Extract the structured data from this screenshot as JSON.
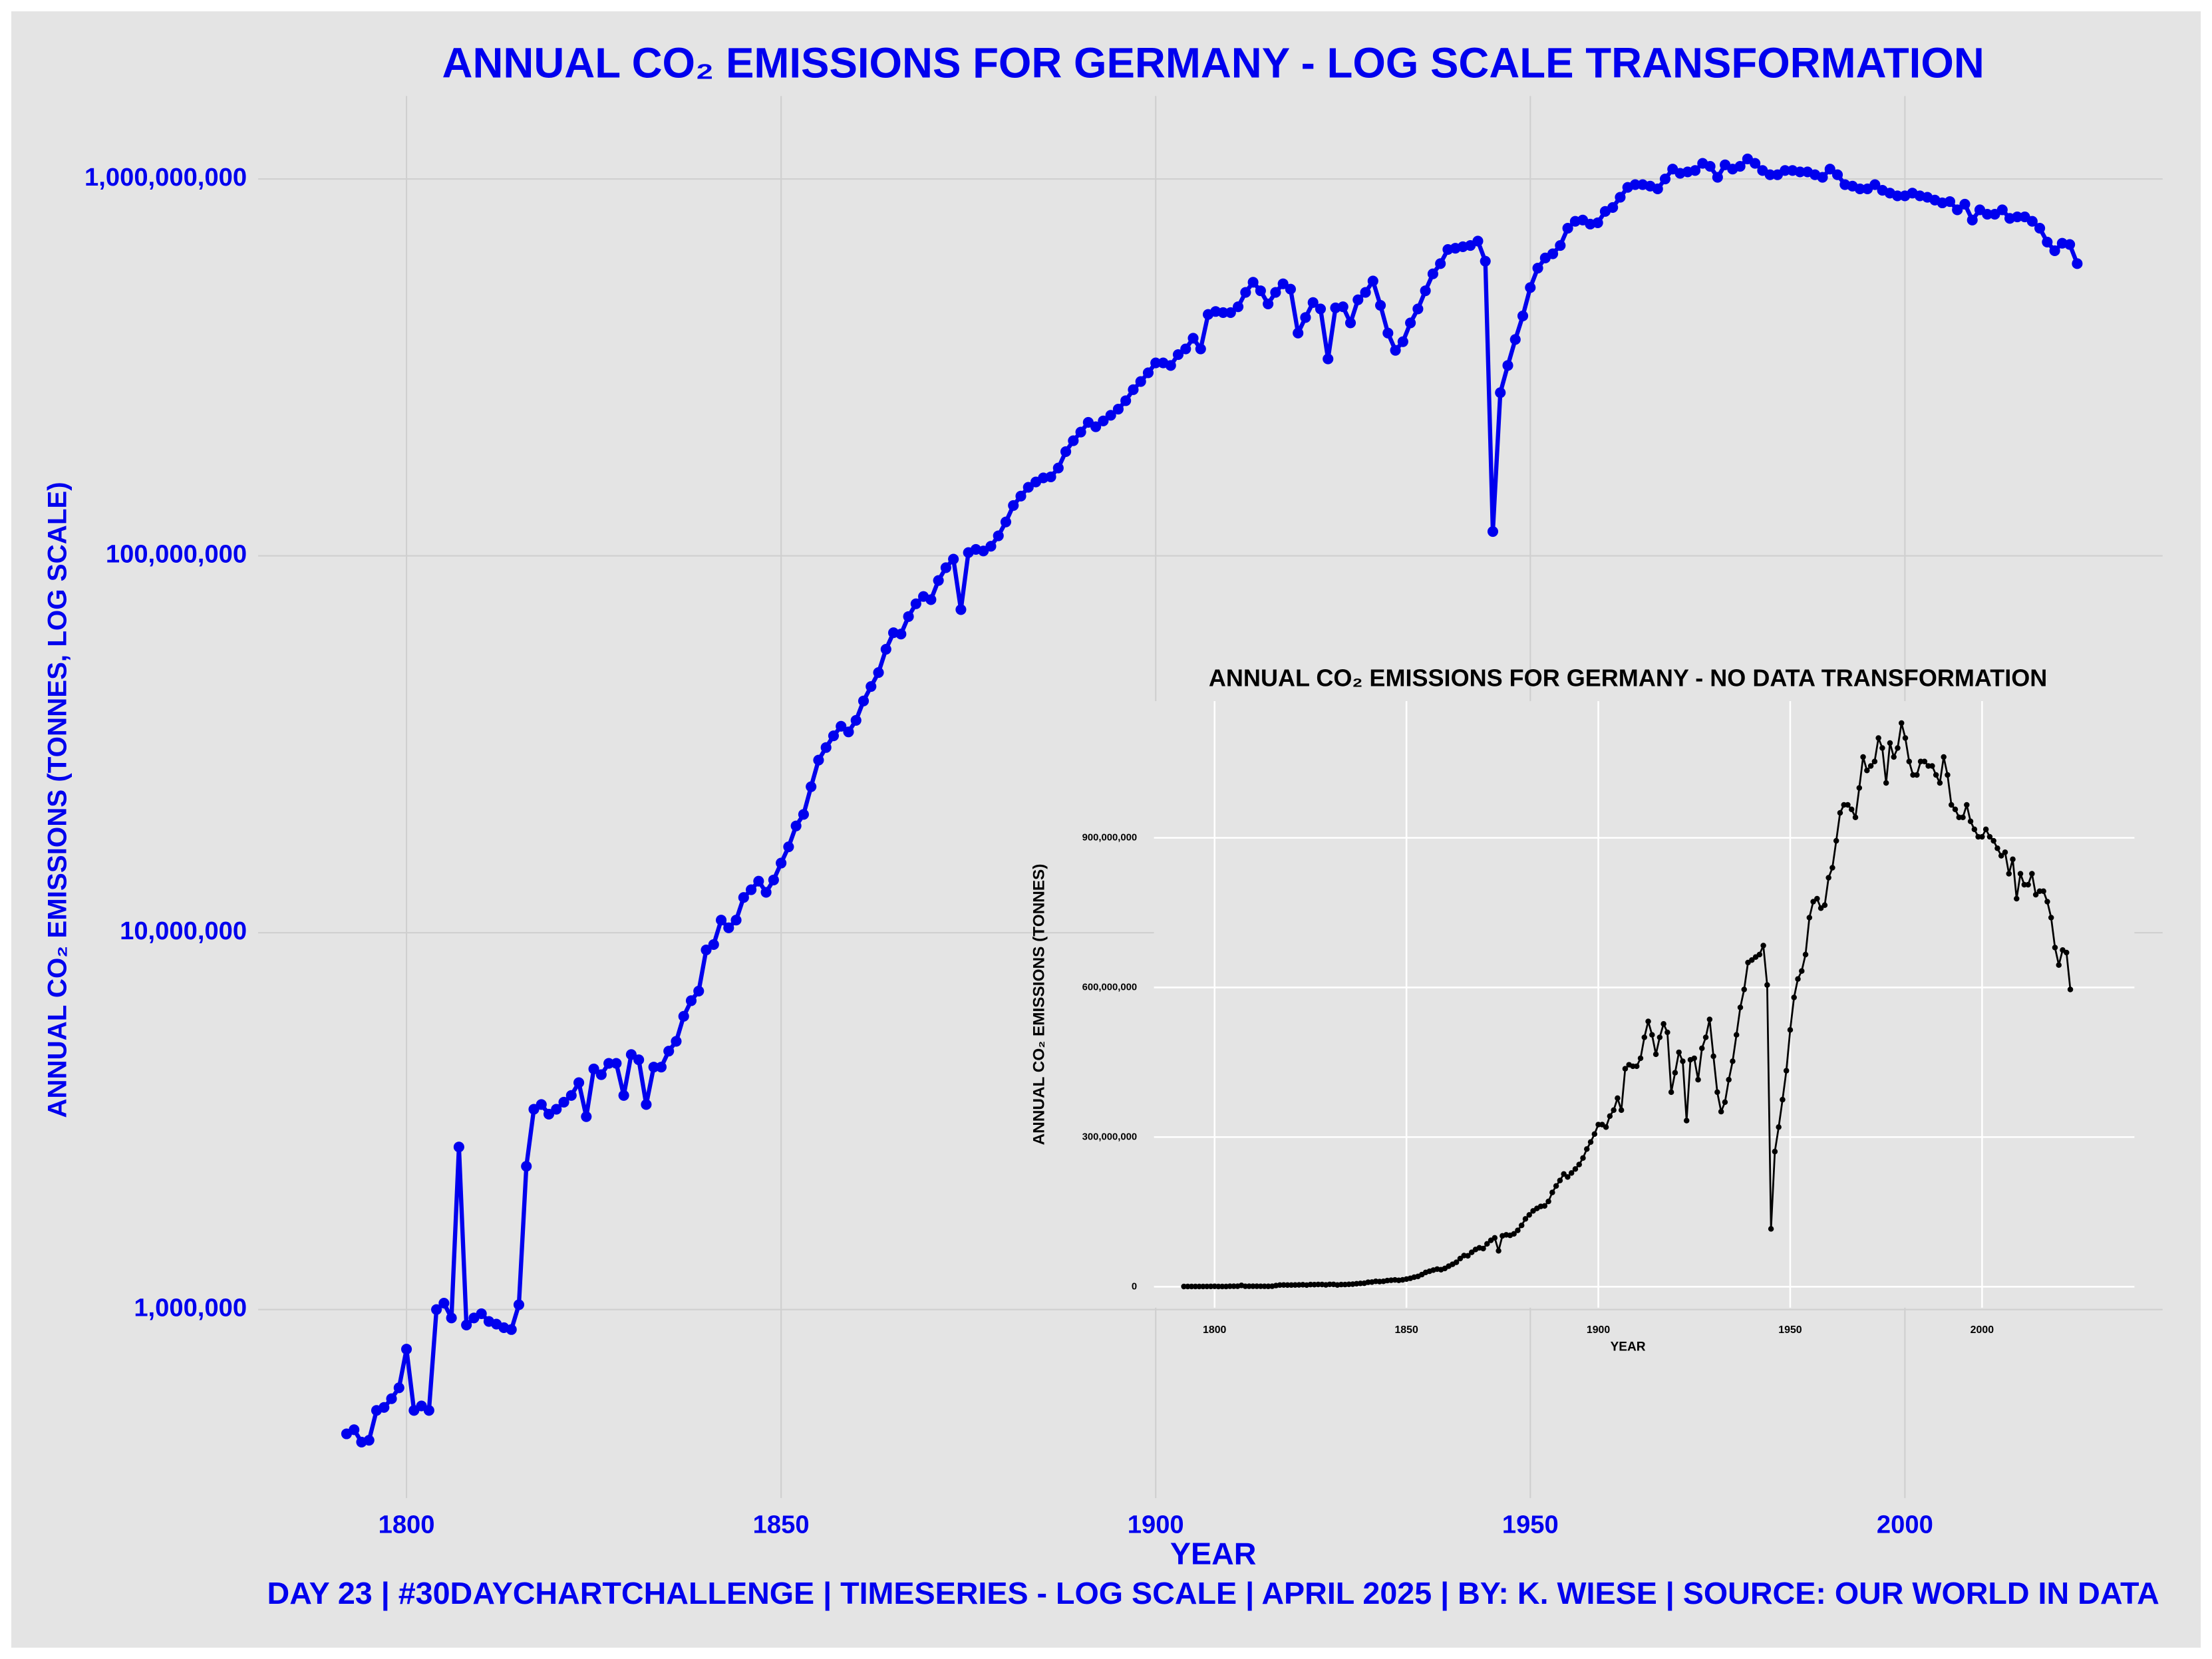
{
  "chart_data": [
    {
      "type": "line",
      "title": "ANNUAL CO₂ EMISSIONS FOR GERMANY - LOG SCALE TRANSFORMATION",
      "x_label": "YEAR",
      "y_label": "ANNUAL CO₂ EMISSIONS (TONNES, LOG SCALE)",
      "caption": "DAY 23 | #30DAYCHARTCHALLENGE | TIMESERIES - LOG SCALE | APRIL 2025 | BY: K. WIESE | SOURCE: OUR WORLD IN DATA",
      "log_scale": true,
      "grid": true,
      "x": [
        1792,
        1793,
        1794,
        1795,
        1796,
        1797,
        1798,
        1799,
        1800,
        1801,
        1802,
        1803,
        1804,
        1805,
        1806,
        1807,
        1808,
        1809,
        1810,
        1811,
        1812,
        1813,
        1814,
        1815,
        1816,
        1817,
        1818,
        1819,
        1820,
        1821,
        1822,
        1823,
        1824,
        1825,
        1826,
        1827,
        1828,
        1829,
        1830,
        1831,
        1832,
        1833,
        1834,
        1835,
        1836,
        1837,
        1838,
        1839,
        1840,
        1841,
        1842,
        1843,
        1844,
        1845,
        1846,
        1847,
        1848,
        1849,
        1850,
        1851,
        1852,
        1853,
        1854,
        1855,
        1856,
        1857,
        1858,
        1859,
        1860,
        1861,
        1862,
        1863,
        1864,
        1865,
        1866,
        1867,
        1868,
        1869,
        1870,
        1871,
        1872,
        1873,
        1874,
        1875,
        1876,
        1877,
        1878,
        1879,
        1880,
        1881,
        1882,
        1883,
        1884,
        1885,
        1886,
        1887,
        1888,
        1889,
        1890,
        1891,
        1892,
        1893,
        1894,
        1895,
        1896,
        1897,
        1898,
        1899,
        1900,
        1901,
        1902,
        1903,
        1904,
        1905,
        1906,
        1907,
        1908,
        1909,
        1910,
        1911,
        1912,
        1913,
        1914,
        1915,
        1916,
        1917,
        1918,
        1919,
        1920,
        1921,
        1922,
        1923,
        1924,
        1925,
        1926,
        1927,
        1928,
        1929,
        1930,
        1931,
        1932,
        1933,
        1934,
        1935,
        1936,
        1937,
        1938,
        1939,
        1940,
        1941,
        1942,
        1943,
        1944,
        1945,
        1946,
        1947,
        1948,
        1949,
        1950,
        1951,
        1952,
        1953,
        1954,
        1955,
        1956,
        1957,
        1958,
        1959,
        1960,
        1961,
        1962,
        1963,
        1964,
        1965,
        1966,
        1967,
        1968,
        1969,
        1970,
        1971,
        1972,
        1973,
        1974,
        1975,
        1976,
        1977,
        1978,
        1979,
        1980,
        1981,
        1982,
        1983,
        1984,
        1985,
        1986,
        1987,
        1988,
        1989,
        1990,
        1991,
        1992,
        1993,
        1994,
        1995,
        1996,
        1997,
        1998,
        1999,
        2000,
        2001,
        2002,
        2003,
        2004,
        2005,
        2006,
        2007,
        2008,
        2009,
        2010,
        2011,
        2012,
        2013,
        2014,
        2015,
        2016,
        2017,
        2018,
        2019,
        2020,
        2021,
        2022,
        2023
      ],
      "series": [
        {
          "color": "#0000ee",
          "values": [
            468000,
            480000,
            445000,
            450000,
            540000,
            550000,
            580000,
            620000,
            785000,
            540000,
            555000,
            540000,
            1000000,
            1040000,
            950000,
            2700000,
            910000,
            950000,
            975000,
            930000,
            915000,
            895000,
            885000,
            1030000,
            2400000,
            3400000,
            3500000,
            3300000,
            3400000,
            3550000,
            3700000,
            4000000,
            3250000,
            4350000,
            4200000,
            4500000,
            4500000,
            3700000,
            4750000,
            4600000,
            3500000,
            4400000,
            4400000,
            4850000,
            5150000,
            6000000,
            6600000,
            7000000,
            9000000,
            9300000,
            10800000,
            10300000,
            10800000,
            12400000,
            13000000,
            13700000,
            12800000,
            13800000,
            15300000,
            16900000,
            19200000,
            20600000,
            24400000,
            28700000,
            31000000,
            33300000,
            35300000,
            34100000,
            36600000,
            41200000,
            45000000,
            49000000,
            56500000,
            62500000,
            62000000,
            69000000,
            74600000,
            78000000,
            76500000,
            86000000,
            93000000,
            98000000,
            72000000,
            102000000,
            104000000,
            103000000,
            106000000,
            113000000,
            123000000,
            136000000,
            144000000,
            152000000,
            157000000,
            161000000,
            162000000,
            171000000,
            189000000,
            202000000,
            213000000,
            226000000,
            220000000,
            228000000,
            236000000,
            245000000,
            258000000,
            276000000,
            290000000,
            306000000,
            325000000,
            325000000,
            320000000,
            342000000,
            354000000,
            378000000,
            354000000,
            437000000,
            445000000,
            442000000,
            442000000,
            458000000,
            500000000,
            532000000,
            505000000,
            466000000,
            500000000,
            527000000,
            510000000,
            390000000,
            429000000,
            470000000,
            452000000,
            333000000,
            455000000,
            458000000,
            415000000,
            478000000,
            500000000,
            536000000,
            462000000,
            390000000,
            351000000,
            370000000,
            415000000,
            452000000,
            505000000,
            560000000,
            596000000,
            650000000,
            655000000,
            661000000,
            666000000,
            684000000,
            605000000,
            116000000,
            271000000,
            320000000,
            375000000,
            433000000,
            515000000,
            580000000,
            617000000,
            633000000,
            666000000,
            740000000,
            772000000,
            778000000,
            759000000,
            765000000,
            820000000,
            840000000,
            894000000,
            950000000,
            966000000,
            966000000,
            957000000,
            941000000,
            1000000000,
            1062000000,
            1035000000,
            1044000000,
            1053000000,
            1100000000,
            1080000000,
            1010000000,
            1090000000,
            1062000000,
            1080000000,
            1130000000,
            1100000000,
            1053000000,
            1026000000,
            1026000000,
            1053000000,
            1053000000,
            1044000000,
            1044000000,
            1026000000,
            1010000000,
            1062000000,
            1026000000,
            966000000,
            957000000,
            941000000,
            941000000,
            966000000,
            933000000,
            917000000,
            902000000,
            902000000,
            917000000,
            902000000,
            894000000,
            879000000,
            864000000,
            871000000,
            828000000,
            857000000,
            778000000,
            828000000,
            806000000,
            806000000,
            828000000,
            786000000,
            793000000,
            793000000,
            772000000,
            740000000,
            680000000,
            645000000,
            675000000,
            670000000,
            596000000
          ]
        }
      ],
      "xlim": [
        1780.2,
        2034.4
      ],
      "ylim": [
        316000,
        1660000000
      ],
      "xticks": [
        1800,
        1850,
        1900,
        1950,
        2000
      ],
      "yticks": [
        {
          "value": 1000000,
          "label": "1,000,000"
        },
        {
          "value": 10000000,
          "label": "10,000,000"
        },
        {
          "value": 100000000,
          "label": "100,000,000"
        },
        {
          "value": 1000000000,
          "label": "1,000,000,000"
        }
      ]
    },
    {
      "type": "line",
      "title": "ANNUAL CO₂ EMISSIONS FOR GERMANY - NO DATA TRANSFORMATION",
      "x_label": "YEAR",
      "y_label": "ANNUAL CO₂ EMISSIONS (TONNES)",
      "log_scale": false,
      "grid": true,
      "x": [
        1792,
        1793,
        1794,
        1795,
        1796,
        1797,
        1798,
        1799,
        1800,
        1801,
        1802,
        1803,
        1804,
        1805,
        1806,
        1807,
        1808,
        1809,
        1810,
        1811,
        1812,
        1813,
        1814,
        1815,
        1816,
        1817,
        1818,
        1819,
        1820,
        1821,
        1822,
        1823,
        1824,
        1825,
        1826,
        1827,
        1828,
        1829,
        1830,
        1831,
        1832,
        1833,
        1834,
        1835,
        1836,
        1837,
        1838,
        1839,
        1840,
        1841,
        1842,
        1843,
        1844,
        1845,
        1846,
        1847,
        1848,
        1849,
        1850,
        1851,
        1852,
        1853,
        1854,
        1855,
        1856,
        1857,
        1858,
        1859,
        1860,
        1861,
        1862,
        1863,
        1864,
        1865,
        1866,
        1867,
        1868,
        1869,
        1870,
        1871,
        1872,
        1873,
        1874,
        1875,
        1876,
        1877,
        1878,
        1879,
        1880,
        1881,
        1882,
        1883,
        1884,
        1885,
        1886,
        1887,
        1888,
        1889,
        1890,
        1891,
        1892,
        1893,
        1894,
        1895,
        1896,
        1897,
        1898,
        1899,
        1900,
        1901,
        1902,
        1903,
        1904,
        1905,
        1906,
        1907,
        1908,
        1909,
        1910,
        1911,
        1912,
        1913,
        1914,
        1915,
        1916,
        1917,
        1918,
        1919,
        1920,
        1921,
        1922,
        1923,
        1924,
        1925,
        1926,
        1927,
        1928,
        1929,
        1930,
        1931,
        1932,
        1933,
        1934,
        1935,
        1936,
        1937,
        1938,
        1939,
        1940,
        1941,
        1942,
        1943,
        1944,
        1945,
        1946,
        1947,
        1948,
        1949,
        1950,
        1951,
        1952,
        1953,
        1954,
        1955,
        1956,
        1957,
        1958,
        1959,
        1960,
        1961,
        1962,
        1963,
        1964,
        1965,
        1966,
        1967,
        1968,
        1969,
        1970,
        1971,
        1972,
        1973,
        1974,
        1975,
        1976,
        1977,
        1978,
        1979,
        1980,
        1981,
        1982,
        1983,
        1984,
        1985,
        1986,
        1987,
        1988,
        1989,
        1990,
        1991,
        1992,
        1993,
        1994,
        1995,
        1996,
        1997,
        1998,
        1999,
        2000,
        2001,
        2002,
        2003,
        2004,
        2005,
        2006,
        2007,
        2008,
        2009,
        2010,
        2011,
        2012,
        2013,
        2014,
        2015,
        2016,
        2017,
        2018,
        2019,
        2020,
        2021,
        2022,
        2023
      ],
      "series": [
        {
          "color": "#000000",
          "values": [
            468000,
            480000,
            445000,
            450000,
            540000,
            550000,
            580000,
            620000,
            785000,
            540000,
            555000,
            540000,
            1000000,
            1040000,
            950000,
            2700000,
            910000,
            950000,
            975000,
            930000,
            915000,
            895000,
            885000,
            1030000,
            2400000,
            3400000,
            3500000,
            3300000,
            3400000,
            3550000,
            3700000,
            4000000,
            3250000,
            4350000,
            4200000,
            4500000,
            4500000,
            3700000,
            4750000,
            4600000,
            3500000,
            4400000,
            4400000,
            4850000,
            5150000,
            6000000,
            6600000,
            7000000,
            9000000,
            9300000,
            10800000,
            10300000,
            10800000,
            12400000,
            13000000,
            13700000,
            12800000,
            13800000,
            15300000,
            16900000,
            19200000,
            20600000,
            24400000,
            28700000,
            31000000,
            33300000,
            35300000,
            34100000,
            36600000,
            41200000,
            45000000,
            49000000,
            56500000,
            62500000,
            62000000,
            69000000,
            74600000,
            78000000,
            76500000,
            86000000,
            93000000,
            98000000,
            72000000,
            102000000,
            104000000,
            103000000,
            106000000,
            113000000,
            123000000,
            136000000,
            144000000,
            152000000,
            157000000,
            161000000,
            162000000,
            171000000,
            189000000,
            202000000,
            213000000,
            226000000,
            220000000,
            228000000,
            236000000,
            245000000,
            258000000,
            276000000,
            290000000,
            306000000,
            325000000,
            325000000,
            320000000,
            342000000,
            354000000,
            378000000,
            354000000,
            437000000,
            445000000,
            442000000,
            442000000,
            458000000,
            500000000,
            532000000,
            505000000,
            466000000,
            500000000,
            527000000,
            510000000,
            390000000,
            429000000,
            470000000,
            452000000,
            333000000,
            455000000,
            458000000,
            415000000,
            478000000,
            500000000,
            536000000,
            462000000,
            390000000,
            351000000,
            370000000,
            415000000,
            452000000,
            505000000,
            560000000,
            596000000,
            650000000,
            655000000,
            661000000,
            666000000,
            684000000,
            605000000,
            116000000,
            271000000,
            320000000,
            375000000,
            433000000,
            515000000,
            580000000,
            617000000,
            633000000,
            666000000,
            740000000,
            772000000,
            778000000,
            759000000,
            765000000,
            820000000,
            840000000,
            894000000,
            950000000,
            966000000,
            966000000,
            957000000,
            941000000,
            1000000000,
            1062000000,
            1035000000,
            1044000000,
            1053000000,
            1100000000,
            1080000000,
            1010000000,
            1090000000,
            1062000000,
            1080000000,
            1130000000,
            1100000000,
            1053000000,
            1026000000,
            1026000000,
            1053000000,
            1053000000,
            1044000000,
            1044000000,
            1026000000,
            1010000000,
            1062000000,
            1026000000,
            966000000,
            957000000,
            941000000,
            941000000,
            966000000,
            933000000,
            917000000,
            902000000,
            902000000,
            917000000,
            902000000,
            894000000,
            879000000,
            864000000,
            871000000,
            828000000,
            857000000,
            778000000,
            828000000,
            806000000,
            806000000,
            828000000,
            786000000,
            793000000,
            793000000,
            772000000,
            740000000,
            680000000,
            645000000,
            675000000,
            670000000,
            596000000
          ]
        }
      ],
      "xlim": [
        1784.2,
        2039.7
      ],
      "ylim": [
        -42000000,
        1174000000
      ],
      "xticks": [
        1800,
        1850,
        1900,
        1950,
        2000
      ],
      "yticks": [
        0,
        {
          "value": 300000000,
          "label": "300,000,000"
        },
        {
          "value": 600000000,
          "label": "600,000,000"
        },
        {
          "value": 900000000,
          "label": "900,000,000"
        }
      ]
    }
  ]
}
